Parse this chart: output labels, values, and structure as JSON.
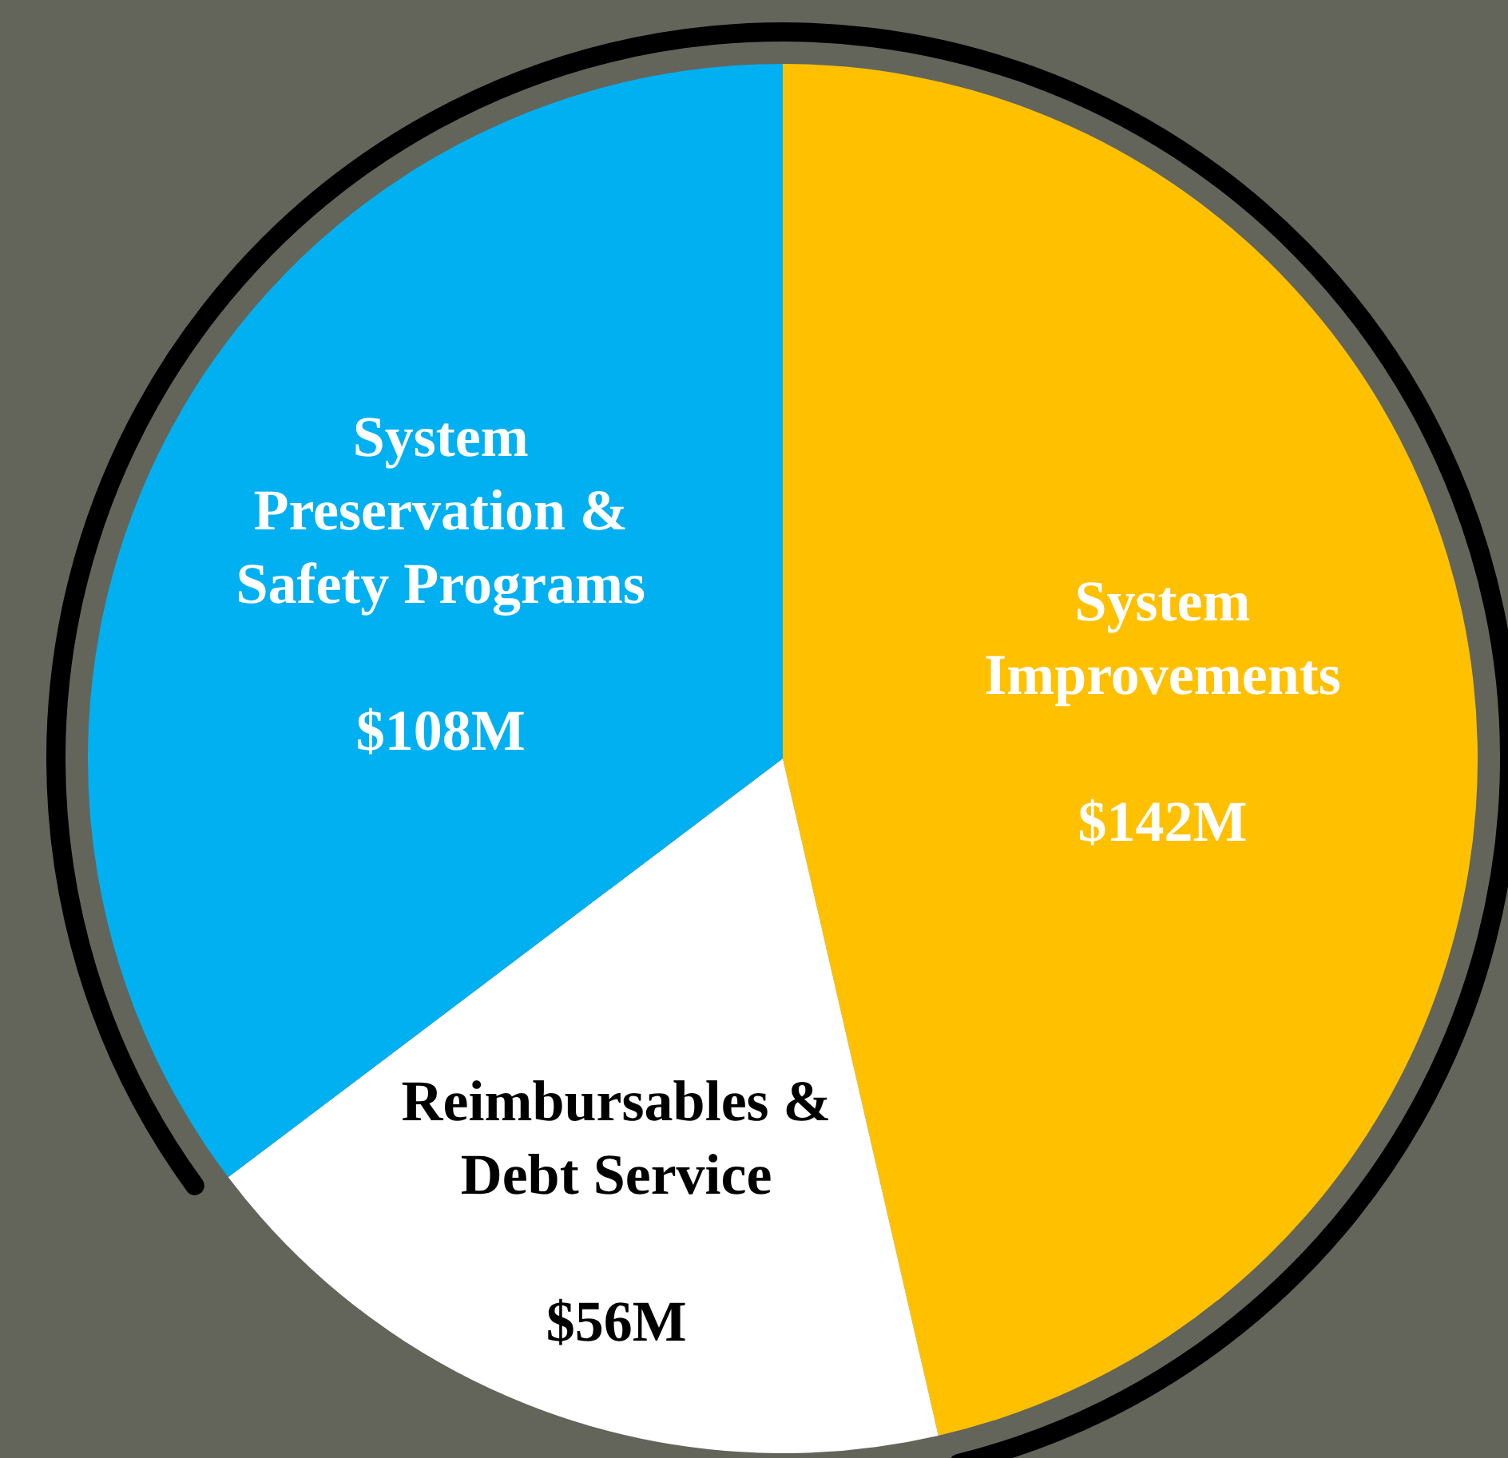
{
  "chart_data": {
    "type": "pie",
    "categories": [
      "System Improvements",
      "Reimbursables & Debt Service",
      "System Preservation & Safety Programs"
    ],
    "values": [
      142,
      56,
      108
    ],
    "colors": [
      "#ffc000",
      "#ffffff",
      "#00b0f0"
    ],
    "value_labels": [
      "$142M",
      "$56M",
      "$108M"
    ],
    "legend": false
  }
}
